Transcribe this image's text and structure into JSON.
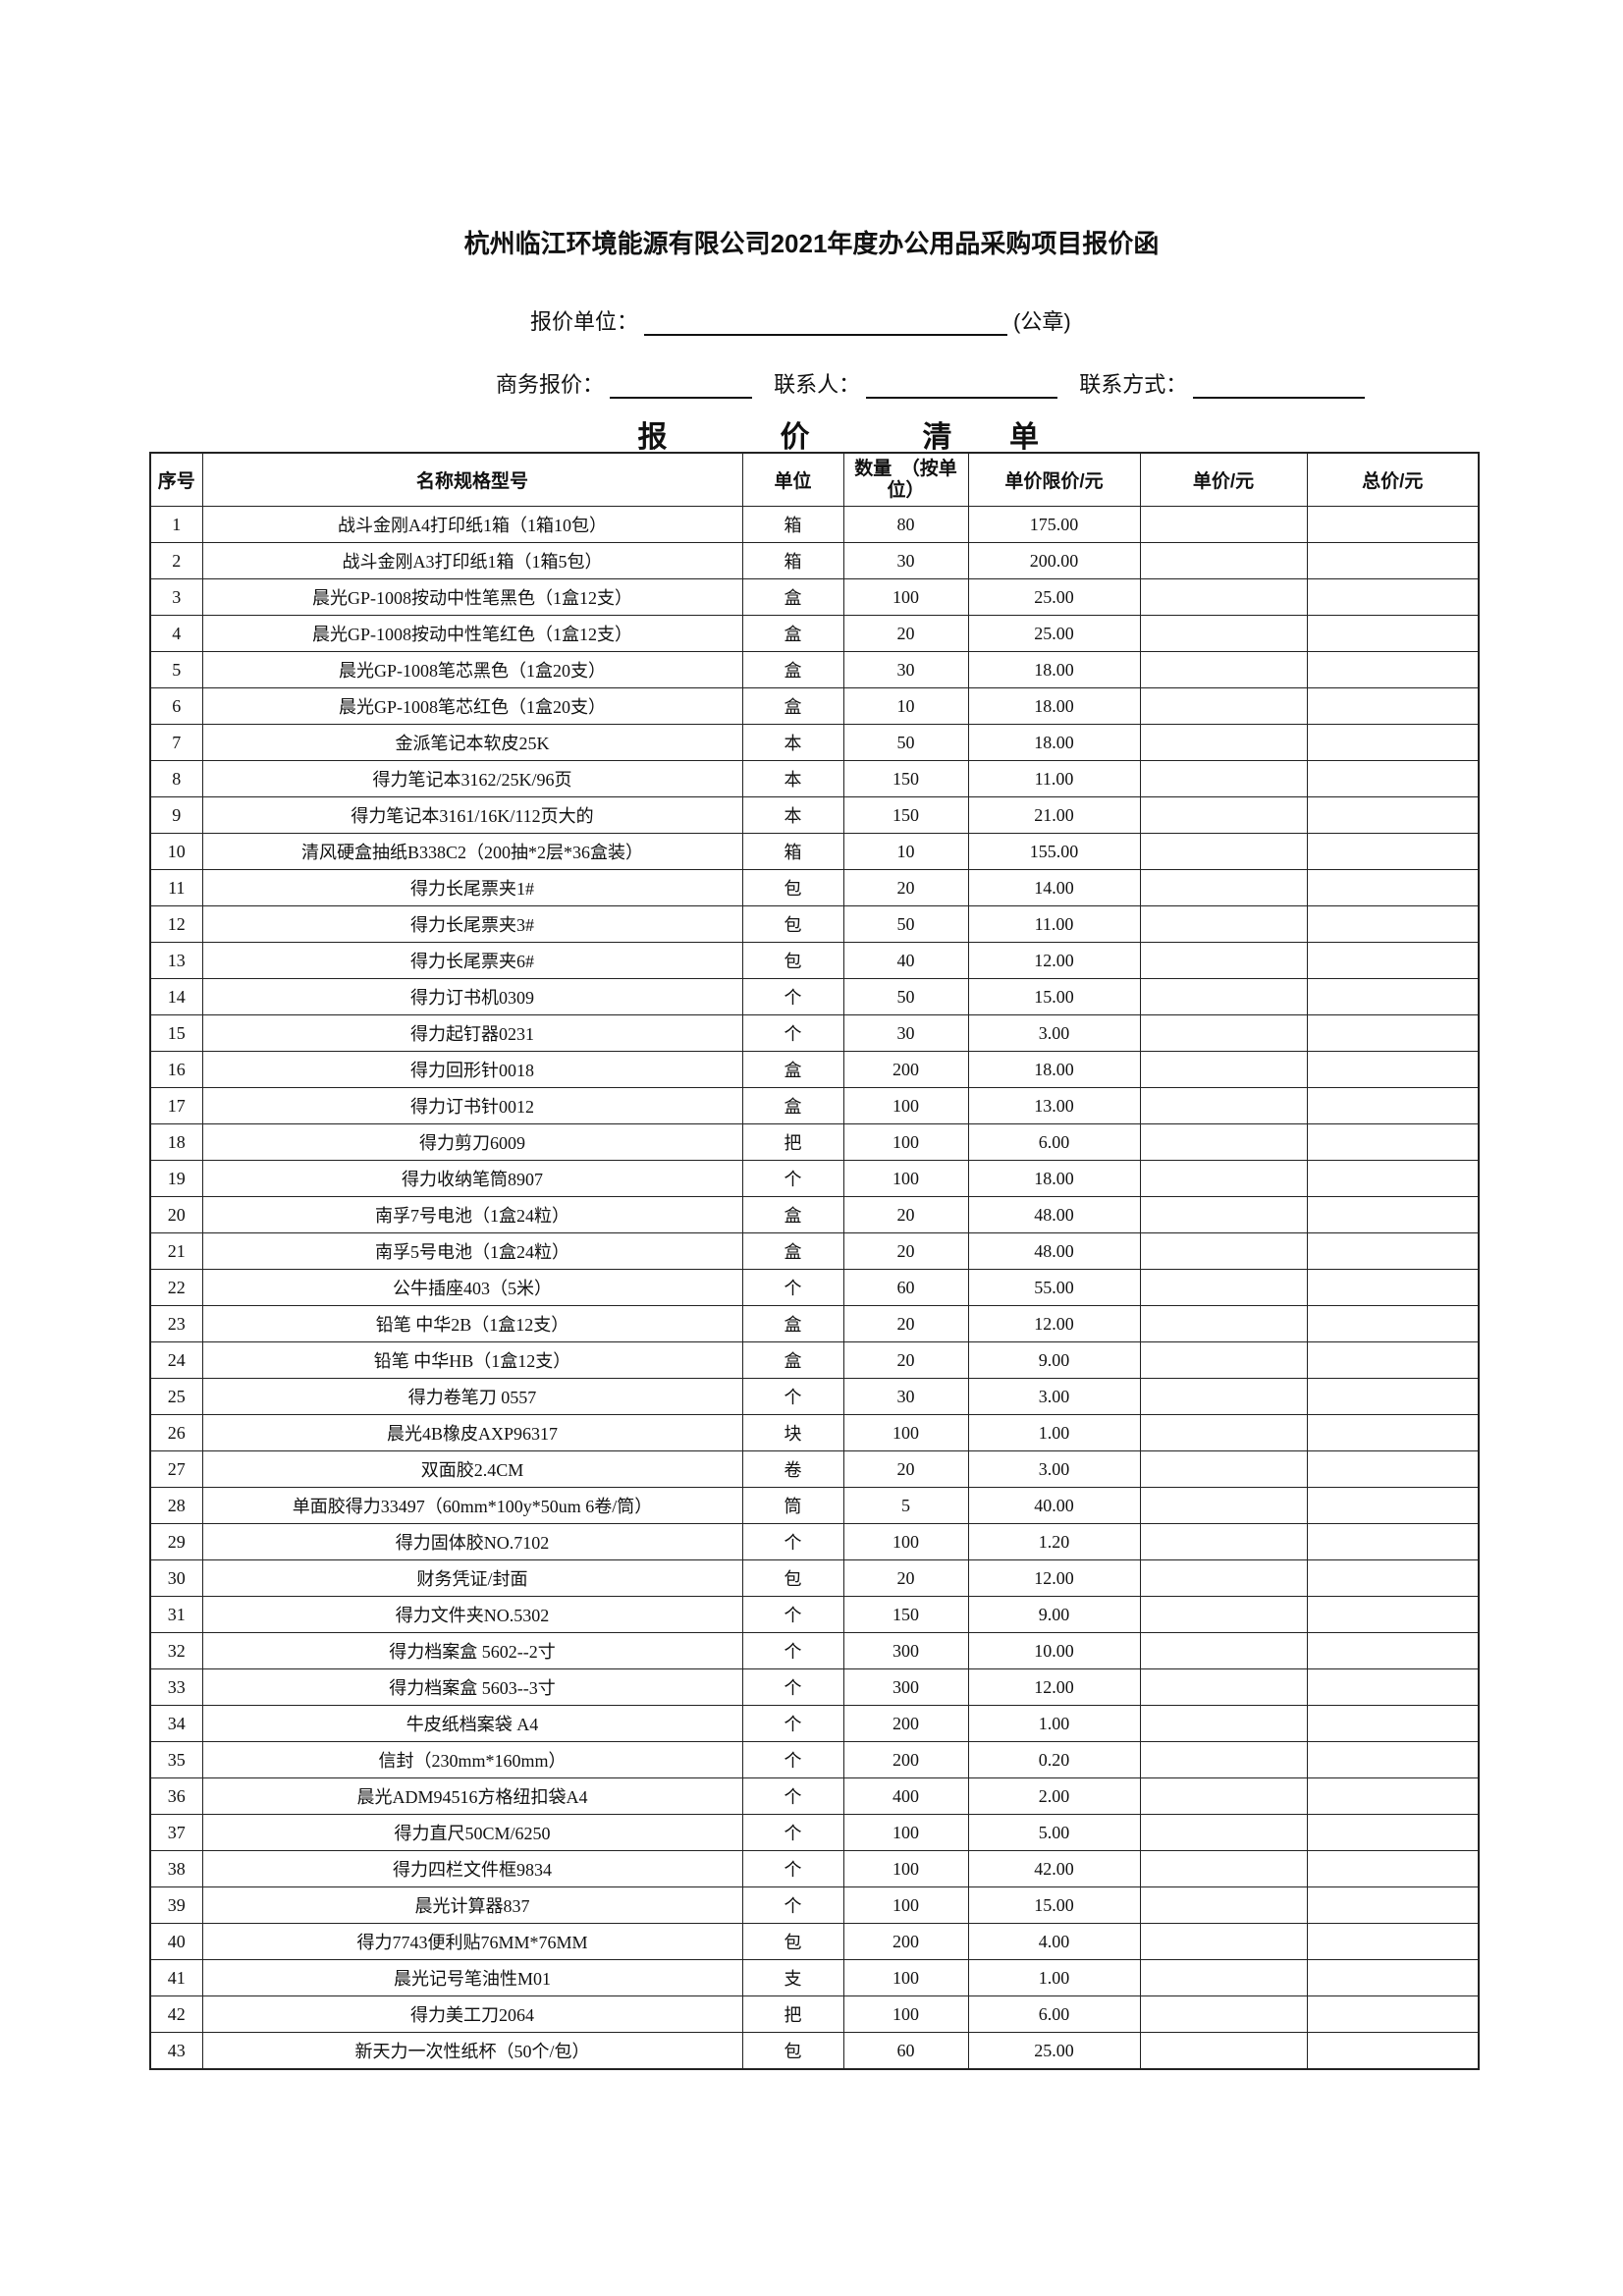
{
  "title": "杭州临江环境能源有限公司2021年度办公用品采购项目报价函",
  "form": {
    "quote_unit_label": "报价单位：",
    "seal_label": "(公章)",
    "business_quote_label": "商务报价：",
    "contact_label": "联系人：",
    "contact_method_label": "联系方式："
  },
  "subtitle_chars": [
    "报",
    "价",
    "清",
    "单"
  ],
  "table": {
    "headers": [
      "序号",
      "名称规格型号",
      "单位",
      "数量　（按单位）",
      "单价限价/元",
      "单价/元",
      "总价/元"
    ],
    "rows": [
      [
        "1",
        "战斗金刚A4打印纸1箱（1箱10包）",
        "箱",
        "80",
        "175.00",
        "",
        ""
      ],
      [
        "2",
        "战斗金刚A3打印纸1箱（1箱5包）",
        "箱",
        "30",
        "200.00",
        "",
        ""
      ],
      [
        "3",
        "晨光GP-1008按动中性笔黑色（1盒12支）",
        "盒",
        "100",
        "25.00",
        "",
        ""
      ],
      [
        "4",
        "晨光GP-1008按动中性笔红色（1盒12支）",
        "盒",
        "20",
        "25.00",
        "",
        ""
      ],
      [
        "5",
        "晨光GP-1008笔芯黑色（1盒20支）",
        "盒",
        "30",
        "18.00",
        "",
        ""
      ],
      [
        "6",
        "晨光GP-1008笔芯红色（1盒20支）",
        "盒",
        "10",
        "18.00",
        "",
        ""
      ],
      [
        "7",
        "金派笔记本软皮25K",
        "本",
        "50",
        "18.00",
        "",
        ""
      ],
      [
        "8",
        "得力笔记本3162/25K/96页",
        "本",
        "150",
        "11.00",
        "",
        ""
      ],
      [
        "9",
        "得力笔记本3161/16K/112页大的",
        "本",
        "150",
        "21.00",
        "",
        ""
      ],
      [
        "10",
        "清风硬盒抽纸B338C2（200抽*2层*36盒装）",
        "箱",
        "10",
        "155.00",
        "",
        ""
      ],
      [
        "11",
        "得力长尾票夹1#",
        "包",
        "20",
        "14.00",
        "",
        ""
      ],
      [
        "12",
        "得力长尾票夹3#",
        "包",
        "50",
        "11.00",
        "",
        ""
      ],
      [
        "13",
        "得力长尾票夹6#",
        "包",
        "40",
        "12.00",
        "",
        ""
      ],
      [
        "14",
        "得力订书机0309",
        "个",
        "50",
        "15.00",
        "",
        ""
      ],
      [
        "15",
        "得力起钉器0231",
        "个",
        "30",
        "3.00",
        "",
        ""
      ],
      [
        "16",
        "得力回形针0018",
        "盒",
        "200",
        "18.00",
        "",
        ""
      ],
      [
        "17",
        "得力订书针0012",
        "盒",
        "100",
        "13.00",
        "",
        ""
      ],
      [
        "18",
        "得力剪刀6009",
        "把",
        "100",
        "6.00",
        "",
        ""
      ],
      [
        "19",
        "得力收纳笔筒8907",
        "个",
        "100",
        "18.00",
        "",
        ""
      ],
      [
        "20",
        "南孚7号电池（1盒24粒）",
        "盒",
        "20",
        "48.00",
        "",
        ""
      ],
      [
        "21",
        "南孚5号电池（1盒24粒）",
        "盒",
        "20",
        "48.00",
        "",
        ""
      ],
      [
        "22",
        "公牛插座403（5米）",
        "个",
        "60",
        "55.00",
        "",
        ""
      ],
      [
        "23",
        "铅笔  中华2B（1盒12支）",
        "盒",
        "20",
        "12.00",
        "",
        ""
      ],
      [
        "24",
        "铅笔  中华HB（1盒12支）",
        "盒",
        "20",
        "9.00",
        "",
        ""
      ],
      [
        "25",
        "得力卷笔刀  0557",
        "个",
        "30",
        "3.00",
        "",
        ""
      ],
      [
        "26",
        "晨光4B橡皮AXP96317",
        "块",
        "100",
        "1.00",
        "",
        ""
      ],
      [
        "27",
        "双面胶2.4CM",
        "卷",
        "20",
        "3.00",
        "",
        ""
      ],
      [
        "28",
        "单面胶得力33497（60mm*100y*50um 6卷/筒）",
        "筒",
        "5",
        "40.00",
        "",
        ""
      ],
      [
        "29",
        "得力固体胶NO.7102",
        "个",
        "100",
        "1.20",
        "",
        ""
      ],
      [
        "30",
        "财务凭证/封面",
        "包",
        "20",
        "12.00",
        "",
        ""
      ],
      [
        "31",
        "得力文件夹NO.5302",
        "个",
        "150",
        "9.00",
        "",
        ""
      ],
      [
        "32",
        "得力档案盒  5602--2寸",
        "个",
        "300",
        "10.00",
        "",
        ""
      ],
      [
        "33",
        "得力档案盒  5603--3寸",
        "个",
        "300",
        "12.00",
        "",
        ""
      ],
      [
        "34",
        "牛皮纸档案袋  A4",
        "个",
        "200",
        "1.00",
        "",
        ""
      ],
      [
        "35",
        "信封（230mm*160mm）",
        "个",
        "200",
        "0.20",
        "",
        ""
      ],
      [
        "36",
        "晨光ADM94516方格纽扣袋A4",
        "个",
        "400",
        "2.00",
        "",
        ""
      ],
      [
        "37",
        "得力直尺50CM/6250",
        "个",
        "100",
        "5.00",
        "",
        ""
      ],
      [
        "38",
        "得力四栏文件框9834",
        "个",
        "100",
        "42.00",
        "",
        ""
      ],
      [
        "39",
        "晨光计算器837",
        "个",
        "100",
        "15.00",
        "",
        ""
      ],
      [
        "40",
        "得力7743便利贴76MM*76MM",
        "包",
        "200",
        "4.00",
        "",
        ""
      ],
      [
        "41",
        "晨光记号笔油性M01",
        "支",
        "100",
        "1.00",
        "",
        ""
      ],
      [
        "42",
        "得力美工刀2064",
        "把",
        "100",
        "6.00",
        "",
        ""
      ],
      [
        "43",
        "新天力一次性纸杯（50个/包）",
        "包",
        "60",
        "25.00",
        "",
        ""
      ]
    ]
  }
}
